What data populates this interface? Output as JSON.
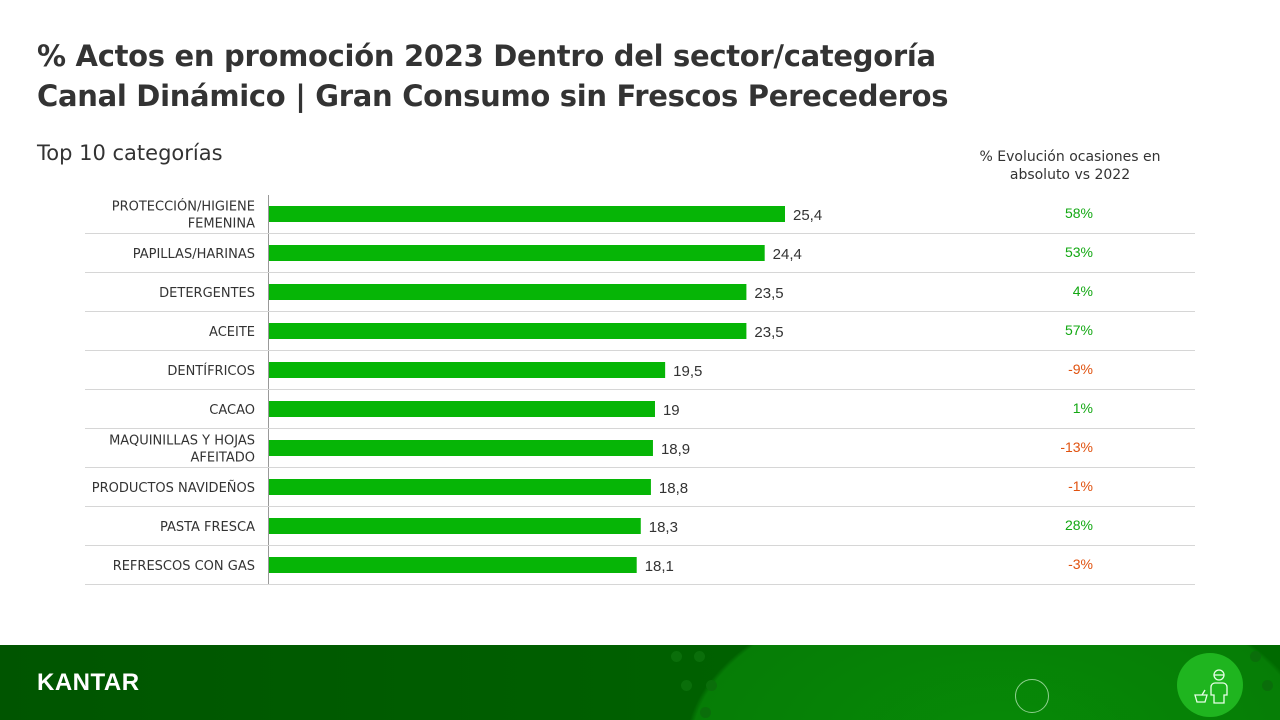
{
  "title_line1": "% Actos en promoción 2023 Dentro del sector/categoría",
  "title_line2": "Canal Dinámico | Gran Consumo sin Frescos Perecederos",
  "subtitle": "Top 10 categorías",
  "evolution_header": "% Evolución ocasiones en absoluto vs 2022",
  "colors": {
    "bar": "#06b506",
    "positive": "#13a813",
    "negative": "#e0520f",
    "footer": "#005a00"
  },
  "footer": {
    "logo": "KANTAR",
    "icon": "shopper-basket-icon"
  },
  "chart_data": {
    "type": "bar",
    "orientation": "horizontal",
    "categories": [
      [
        "PROTECCIÓN/HIGIENE",
        "FEMENINA"
      ],
      [
        "PAPILLAS/HARINAS"
      ],
      [
        "DETERGENTES"
      ],
      [
        "ACEITE"
      ],
      [
        "DENTÍFRICOS"
      ],
      [
        "CACAO"
      ],
      [
        "MAQUINILLAS Y HOJAS",
        "AFEITADO"
      ],
      [
        "PRODUCTOS NAVIDEÑOS"
      ],
      [
        "PASTA FRESCA"
      ],
      [
        "REFRESCOS CON GAS"
      ]
    ],
    "values": [
      25.4,
      24.4,
      23.5,
      23.5,
      19.5,
      19,
      18.9,
      18.8,
      18.3,
      18.1
    ],
    "value_labels": [
      "25,4",
      "24,4",
      "23,5",
      "23,5",
      "19,5",
      "19",
      "18,9",
      "18,8",
      "18,3",
      "18,1"
    ],
    "evolution": [
      "58%",
      "53%",
      "4%",
      "57%",
      "-9%",
      "1%",
      "-13%",
      "-1%",
      "28%",
      "-3%"
    ],
    "grid": false
  }
}
